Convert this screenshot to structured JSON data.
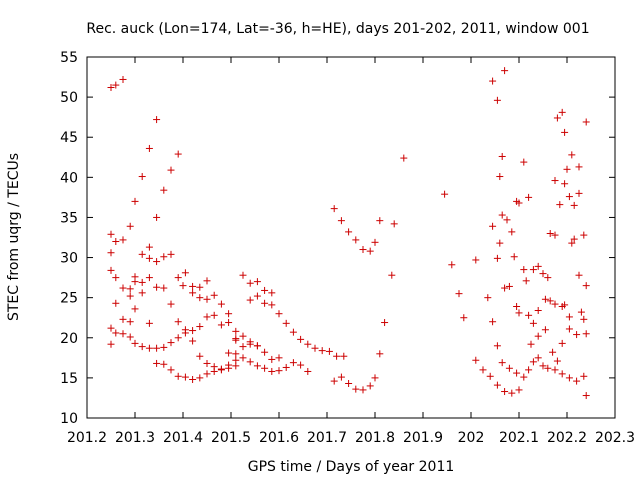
{
  "chart_data": {
    "type": "scatter",
    "title": "Rec. auck (Lon=174, Lat=-36, h=HE), days 201-202, 2011, window 001",
    "xlabel": "GPS time / Days of year 2011",
    "ylabel": "STEC from uqrg / TECUs",
    "xlim": [
      201.2,
      202.3
    ],
    "ylim": [
      10,
      55
    ],
    "xticks": [
      "201.2",
      "201.3",
      "201.4",
      "201.5",
      "201.6",
      "201.7",
      "201.8",
      "201.9",
      "202",
      "202.1",
      "202.2",
      "202.3"
    ],
    "yticks": [
      "10",
      "15",
      "20",
      "25",
      "30",
      "35",
      "40",
      "45",
      "50",
      "55"
    ],
    "grid": false,
    "legend": "none",
    "marker": "plus",
    "color": "#cc0000",
    "series": [
      {
        "points": [
          [
            201.25,
            51.2
          ],
          [
            201.26,
            51.5
          ],
          [
            201.275,
            52.2
          ],
          [
            201.25,
            32.9
          ],
          [
            201.26,
            32.0
          ],
          [
            201.275,
            32.2
          ],
          [
            201.29,
            33.9
          ],
          [
            201.3,
            37.0
          ],
          [
            201.315,
            40.1
          ],
          [
            201.33,
            43.6
          ],
          [
            201.345,
            47.2
          ],
          [
            201.25,
            30.6
          ],
          [
            201.25,
            28.4
          ],
          [
            201.26,
            27.5
          ],
          [
            201.275,
            26.2
          ],
          [
            201.29,
            25.2
          ],
          [
            201.3,
            27.6
          ],
          [
            201.315,
            30.4
          ],
          [
            201.33,
            31.3
          ],
          [
            201.345,
            35.0
          ],
          [
            201.36,
            38.4
          ],
          [
            201.375,
            40.9
          ],
          [
            201.39,
            42.9
          ],
          [
            201.26,
            24.3
          ],
          [
            201.275,
            22.3
          ],
          [
            201.29,
            22.0
          ],
          [
            201.3,
            23.6
          ],
          [
            201.315,
            25.6
          ],
          [
            201.33,
            27.5
          ],
          [
            201.345,
            29.5
          ],
          [
            201.36,
            30.1
          ],
          [
            201.375,
            30.4
          ],
          [
            201.39,
            27.5
          ],
          [
            201.405,
            28.1
          ],
          [
            201.42,
            26.4
          ],
          [
            201.435,
            26.3
          ],
          [
            201.45,
            27.1
          ],
          [
            201.465,
            25.3
          ],
          [
            201.25,
            21.2
          ],
          [
            201.26,
            20.6
          ],
          [
            201.275,
            20.5
          ],
          [
            201.29,
            20.1
          ],
          [
            201.3,
            19.3
          ],
          [
            201.315,
            18.9
          ],
          [
            201.33,
            18.7
          ],
          [
            201.345,
            18.7
          ],
          [
            201.36,
            18.8
          ],
          [
            201.375,
            19.4
          ],
          [
            201.39,
            20.0
          ],
          [
            201.405,
            20.6
          ],
          [
            201.42,
            20.9
          ],
          [
            201.435,
            21.4
          ],
          [
            201.45,
            22.6
          ],
          [
            201.465,
            22.8
          ],
          [
            201.48,
            21.6
          ],
          [
            201.495,
            21.9
          ],
          [
            201.51,
            19.9
          ],
          [
            201.25,
            19.2
          ],
          [
            201.29,
            26.1
          ],
          [
            201.3,
            27.0
          ],
          [
            201.315,
            26.9
          ],
          [
            201.33,
            29.9
          ],
          [
            201.345,
            26.3
          ],
          [
            201.36,
            26.2
          ],
          [
            201.375,
            24.2
          ],
          [
            201.39,
            22.0
          ],
          [
            201.405,
            21.0
          ],
          [
            201.42,
            19.6
          ],
          [
            201.435,
            17.7
          ],
          [
            201.45,
            16.8
          ],
          [
            201.465,
            16.4
          ],
          [
            201.48,
            16.0
          ],
          [
            201.495,
            16.2
          ],
          [
            201.51,
            16.5
          ],
          [
            201.33,
            21.8
          ],
          [
            201.345,
            16.8
          ],
          [
            201.36,
            16.7
          ],
          [
            201.375,
            16.0
          ],
          [
            201.39,
            15.2
          ],
          [
            201.405,
            15.1
          ],
          [
            201.42,
            14.8
          ],
          [
            201.435,
            15.0
          ],
          [
            201.45,
            15.5
          ],
          [
            201.465,
            15.8
          ],
          [
            201.48,
            16.1
          ],
          [
            201.495,
            16.6
          ],
          [
            201.51,
            17.2
          ],
          [
            201.4,
            26.5
          ],
          [
            201.42,
            25.6
          ],
          [
            201.435,
            25.0
          ],
          [
            201.45,
            24.8
          ],
          [
            201.48,
            24.2
          ],
          [
            201.495,
            23.0
          ],
          [
            201.51,
            20.8
          ],
          [
            201.525,
            20.2
          ],
          [
            201.54,
            19.5
          ],
          [
            201.555,
            19.0
          ],
          [
            201.57,
            18.2
          ],
          [
            201.585,
            17.3
          ],
          [
            201.6,
            17.5
          ],
          [
            201.495,
            18.1
          ],
          [
            201.51,
            18.0
          ],
          [
            201.525,
            17.5
          ],
          [
            201.54,
            17.0
          ],
          [
            201.555,
            16.5
          ],
          [
            201.57,
            16.2
          ],
          [
            201.585,
            15.8
          ],
          [
            201.6,
            15.9
          ],
          [
            201.615,
            16.3
          ],
          [
            201.63,
            16.9
          ],
          [
            201.645,
            16.6
          ],
          [
            201.66,
            15.8
          ],
          [
            201.525,
            27.8
          ],
          [
            201.54,
            26.8
          ],
          [
            201.555,
            27.0
          ],
          [
            201.57,
            25.9
          ],
          [
            201.585,
            25.6
          ],
          [
            201.54,
            24.7
          ],
          [
            201.555,
            25.2
          ],
          [
            201.57,
            24.3
          ],
          [
            201.585,
            24.1
          ],
          [
            201.6,
            23.0
          ],
          [
            201.615,
            21.8
          ],
          [
            201.63,
            20.7
          ],
          [
            201.645,
            19.8
          ],
          [
            201.66,
            19.2
          ],
          [
            201.675,
            18.7
          ],
          [
            201.69,
            18.4
          ],
          [
            201.705,
            18.3
          ],
          [
            201.72,
            17.7
          ],
          [
            201.735,
            17.7
          ],
          [
            201.51,
            19.7
          ],
          [
            201.525,
            18.9
          ],
          [
            201.54,
            19.2
          ],
          [
            201.555,
            19.0
          ],
          [
            201.715,
            36.1
          ],
          [
            201.73,
            34.6
          ],
          [
            201.745,
            33.2
          ],
          [
            201.76,
            32.2
          ],
          [
            201.775,
            31.0
          ],
          [
            201.79,
            30.8
          ],
          [
            201.8,
            31.9
          ],
          [
            201.81,
            34.6
          ],
          [
            201.84,
            34.2
          ],
          [
            201.715,
            14.6
          ],
          [
            201.73,
            15.1
          ],
          [
            201.745,
            14.3
          ],
          [
            201.76,
            13.6
          ],
          [
            201.775,
            13.5
          ],
          [
            201.79,
            14.0
          ],
          [
            201.8,
            15.0
          ],
          [
            201.81,
            18.0
          ],
          [
            201.82,
            21.9
          ],
          [
            201.835,
            27.8
          ],
          [
            201.86,
            42.4
          ],
          [
            201.945,
            37.9
          ],
          [
            201.96,
            29.1
          ],
          [
            201.975,
            25.5
          ],
          [
            201.985,
            22.5
          ],
          [
            202.01,
            29.7
          ],
          [
            202.01,
            17.2
          ],
          [
            202.025,
            16.0
          ],
          [
            202.04,
            15.2
          ],
          [
            202.055,
            14.1
          ],
          [
            202.07,
            13.3
          ],
          [
            202.085,
            13.1
          ],
          [
            202.1,
            13.5
          ],
          [
            202.045,
            22.0
          ],
          [
            202.055,
            19.0
          ],
          [
            202.065,
            16.9
          ],
          [
            202.08,
            16.2
          ],
          [
            202.095,
            15.6
          ],
          [
            202.045,
            52.0
          ],
          [
            202.055,
            49.6
          ],
          [
            202.07,
            53.3
          ],
          [
            202.06,
            40.1
          ],
          [
            202.065,
            42.6
          ],
          [
            202.045,
            33.9
          ],
          [
            202.055,
            29.9
          ],
          [
            202.065,
            35.3
          ],
          [
            202.075,
            34.7
          ],
          [
            202.085,
            33.2
          ],
          [
            202.095,
            37.0
          ],
          [
            202.1,
            36.8
          ],
          [
            202.11,
            41.9
          ],
          [
            202.12,
            37.5
          ],
          [
            202.035,
            25.0
          ],
          [
            202.06,
            31.8
          ],
          [
            202.07,
            26.2
          ],
          [
            202.08,
            26.4
          ],
          [
            202.09,
            30.1
          ],
          [
            202.095,
            23.9
          ],
          [
            202.1,
            23.1
          ],
          [
            202.11,
            28.5
          ],
          [
            202.115,
            27.1
          ],
          [
            202.12,
            22.8
          ],
          [
            202.13,
            21.8
          ],
          [
            202.14,
            23.4
          ],
          [
            202.155,
            24.8
          ],
          [
            202.165,
            24.6
          ],
          [
            202.175,
            24.2
          ],
          [
            202.19,
            23.9
          ],
          [
            202.205,
            22.6
          ],
          [
            202.11,
            15.1
          ],
          [
            202.12,
            16.0
          ],
          [
            202.13,
            17.0
          ],
          [
            202.14,
            17.5
          ],
          [
            202.15,
            16.5
          ],
          [
            202.16,
            16.2
          ],
          [
            202.175,
            16.0
          ],
          [
            202.19,
            15.5
          ],
          [
            202.205,
            15.0
          ],
          [
            202.22,
            14.6
          ],
          [
            202.235,
            15.2
          ],
          [
            202.24,
            12.8
          ],
          [
            202.125,
            19.2
          ],
          [
            202.14,
            20.2
          ],
          [
            202.155,
            21.0
          ],
          [
            202.17,
            18.2
          ],
          [
            202.18,
            17.1
          ],
          [
            202.19,
            19.3
          ],
          [
            202.205,
            21.1
          ],
          [
            202.22,
            20.4
          ],
          [
            202.235,
            22.3
          ],
          [
            202.24,
            20.5
          ],
          [
            202.13,
            28.5
          ],
          [
            202.14,
            28.9
          ],
          [
            202.15,
            28.0
          ],
          [
            202.16,
            27.5
          ],
          [
            202.165,
            33.0
          ],
          [
            202.175,
            32.8
          ],
          [
            202.185,
            36.6
          ],
          [
            202.195,
            39.2
          ],
          [
            202.205,
            37.6
          ],
          [
            202.215,
            36.5
          ],
          [
            202.225,
            38.0
          ],
          [
            202.235,
            32.8
          ],
          [
            202.175,
            39.6
          ],
          [
            202.18,
            47.4
          ],
          [
            202.19,
            48.1
          ],
          [
            202.195,
            45.6
          ],
          [
            202.2,
            41.0
          ],
          [
            202.21,
            42.8
          ],
          [
            202.225,
            41.3
          ],
          [
            202.24,
            46.9
          ],
          [
            202.195,
            24.1
          ],
          [
            202.21,
            31.8
          ],
          [
            202.215,
            32.3
          ],
          [
            202.225,
            27.8
          ],
          [
            202.23,
            23.2
          ],
          [
            202.24,
            26.5
          ]
        ]
      }
    ]
  }
}
